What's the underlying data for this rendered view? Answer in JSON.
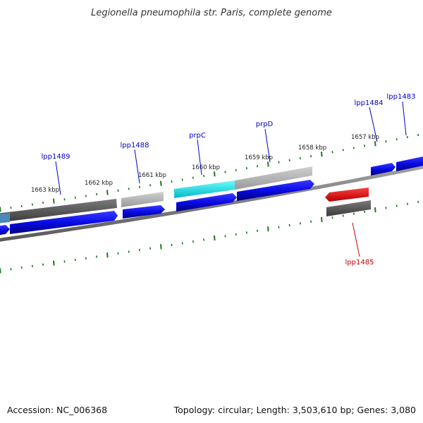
{
  "title": "Legionella pneumophila str. Paris, complete genome",
  "footer": {
    "accession": "Accession: NC_006368",
    "summary": "Topology: circular; Length: 3,503,610 bp; Genes: 3,080"
  },
  "colors": {
    "forward_cds": "#0a0ae6",
    "reverse_cds_highlight": "#e00000",
    "gene_dark": "#555555",
    "gene_light": "#b8b8b8",
    "gene_cyan": "#00e5e5",
    "backbone": "#808080",
    "tick": "#1a7a1a",
    "label_blue": "#0000cc",
    "label_red": "#cc0000"
  },
  "tick_labels": [
    "1663 kbp",
    "1662 kbp",
    "1661 kbp",
    "1660 kbp",
    "1659 kbp",
    "1658 kbp",
    "1657 kbp"
  ],
  "gene_labels": [
    {
      "text": "lpp1489",
      "color": "#0000cc"
    },
    {
      "text": "lpp1488",
      "color": "#0000cc"
    },
    {
      "text": "prpC",
      "color": "#0000cc"
    },
    {
      "text": "prpD",
      "color": "#0000cc"
    },
    {
      "text": "lpp1484",
      "color": "#0000cc"
    },
    {
      "text": "lpp1483",
      "color": "#0000cc"
    },
    {
      "text": "lpp1485",
      "color": "#cc0000"
    }
  ]
}
